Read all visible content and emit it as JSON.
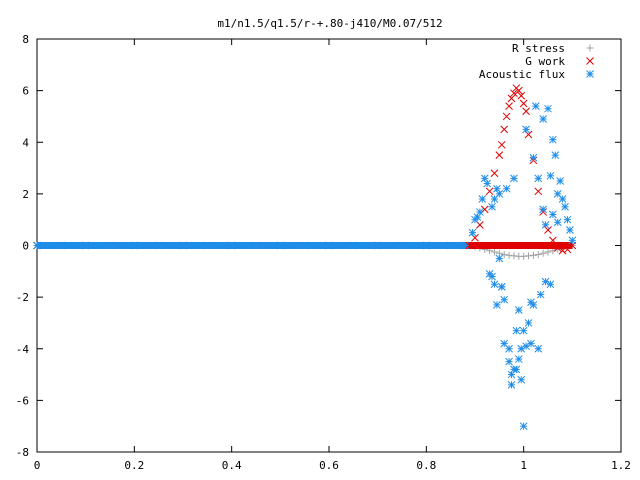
{
  "chart_data": {
    "type": "scatter",
    "title": "m1/n1.5/q1.5/r-+.80-j410/M0.07/512",
    "xlabel": "",
    "ylabel": "",
    "xlim": [
      0,
      1.2
    ],
    "ylim": [
      -8,
      8
    ],
    "x_ticks": [
      "0",
      "0.2",
      "0.4",
      "0.6",
      "0.8",
      "1",
      "1.2"
    ],
    "y_ticks": [
      "8",
      "6",
      "4",
      "2",
      "0",
      "-2",
      "-4",
      "-6",
      "-8"
    ],
    "grid": false,
    "legend_position": "top-right",
    "series": [
      {
        "name": "R stress",
        "marker": "plus",
        "color": "#a0a0a0",
        "x": [
          0.0,
          0.05,
          0.1,
          0.15,
          0.2,
          0.25,
          0.3,
          0.35,
          0.4,
          0.45,
          0.5,
          0.55,
          0.6,
          0.65,
          0.7,
          0.75,
          0.8,
          0.85,
          0.88,
          0.9,
          0.91,
          0.92,
          0.93,
          0.94,
          0.95,
          0.96,
          0.97,
          0.98,
          0.99,
          1.0,
          1.01,
          1.02,
          1.03,
          1.04,
          1.05,
          1.06,
          1.07,
          1.08,
          1.09,
          1.1
        ],
        "y": [
          0,
          0,
          0,
          0,
          0,
          0,
          0,
          0,
          0,
          0,
          0,
          0,
          0,
          0,
          0,
          0,
          0,
          0,
          0,
          -0.05,
          -0.1,
          -0.15,
          -0.2,
          -0.25,
          -0.3,
          -0.35,
          -0.38,
          -0.4,
          -0.42,
          -0.42,
          -0.4,
          -0.38,
          -0.35,
          -0.3,
          -0.25,
          -0.2,
          -0.15,
          -0.1,
          -0.05,
          0
        ]
      },
      {
        "name": "G work",
        "marker": "cross",
        "color": "#e00000",
        "x": [
          0.0,
          0.1,
          0.2,
          0.3,
          0.4,
          0.5,
          0.6,
          0.7,
          0.8,
          0.88,
          0.9,
          0.91,
          0.92,
          0.93,
          0.94,
          0.95,
          0.955,
          0.96,
          0.965,
          0.97,
          0.975,
          0.98,
          0.985,
          0.99,
          0.995,
          1.0,
          1.005,
          1.01,
          1.02,
          1.03,
          1.04,
          1.05,
          1.06,
          1.07,
          1.08,
          1.09,
          1.1
        ],
        "y": [
          0,
          0,
          0,
          0,
          0,
          0,
          0,
          0,
          0,
          0,
          0.3,
          0.8,
          1.4,
          2.1,
          2.8,
          3.5,
          3.9,
          4.5,
          5.0,
          5.4,
          5.7,
          5.9,
          6.1,
          6.0,
          5.8,
          5.5,
          5.2,
          4.3,
          3.3,
          2.1,
          1.3,
          0.6,
          0.2,
          -0.1,
          -0.2,
          -0.15,
          0
        ]
      },
      {
        "name": "Acoustic flux",
        "marker": "star",
        "color": "#1f8de8",
        "x": [
          0.0,
          0.05,
          0.1,
          0.15,
          0.2,
          0.25,
          0.3,
          0.35,
          0.4,
          0.45,
          0.5,
          0.55,
          0.6,
          0.65,
          0.7,
          0.75,
          0.8,
          0.85,
          0.88,
          0.895,
          0.9,
          0.905,
          0.91,
          0.915,
          0.92,
          0.925,
          0.93,
          0.935,
          0.94,
          0.945,
          0.95,
          0.955,
          0.96,
          0.965,
          0.97,
          0.975,
          0.98,
          0.985,
          0.99,
          0.995,
          1.0,
          1.005,
          1.01,
          1.015,
          1.02,
          1.025,
          1.03,
          1.035,
          1.04,
          1.045,
          1.05,
          1.055,
          1.06,
          1.065,
          1.07,
          1.075,
          1.08,
          1.085,
          1.09,
          1.095,
          1.1,
          0.935,
          0.945,
          0.96,
          0.975,
          0.99,
          1.0,
          1.015,
          1.03,
          1.045,
          1.06,
          0.94,
          0.955,
          0.97,
          0.985,
          1.005,
          1.02,
          1.04,
          1.055,
          1.07,
          0.95,
          0.98,
          0.995
        ],
        "y": [
          0,
          0,
          0,
          0,
          0,
          0,
          0,
          0,
          0,
          0,
          0,
          0,
          0,
          0,
          0,
          0,
          0,
          0,
          0,
          0.5,
          1.0,
          1.1,
          1.3,
          1.8,
          2.6,
          2.4,
          -1.1,
          1.5,
          -1.5,
          -2.3,
          2.0,
          -1.6,
          -3.8,
          2.2,
          -4.0,
          -5.0,
          2.6,
          -4.8,
          -4.4,
          -4.0,
          -3.3,
          4.5,
          -3.0,
          -3.8,
          3.4,
          5.4,
          2.6,
          -1.9,
          4.9,
          0.8,
          5.3,
          2.7,
          1.2,
          3.5,
          2.0,
          2.5,
          1.8,
          1.5,
          1.0,
          0.6,
          0.2,
          -1.2,
          2.2,
          -2.1,
          -5.4,
          -2.5,
          -7.0,
          -2.2,
          -4.0,
          -1.4,
          4.1,
          1.8,
          -1.6,
          -4.5,
          -3.3,
          -3.9,
          -2.3,
          1.4,
          -1.5,
          0.9,
          -0.5,
          -4.8,
          -5.2
        ]
      }
    ]
  }
}
